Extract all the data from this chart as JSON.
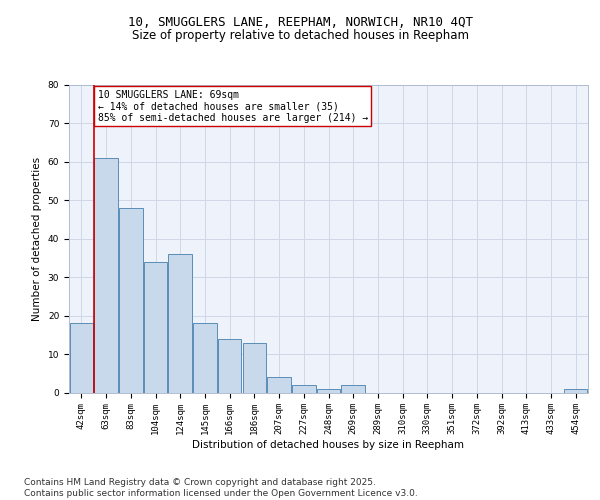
{
  "title": "10, SMUGGLERS LANE, REEPHAM, NORWICH, NR10 4QT",
  "subtitle": "Size of property relative to detached houses in Reepham",
  "xlabel": "Distribution of detached houses by size in Reepham",
  "ylabel": "Number of detached properties",
  "categories": [
    "42sqm",
    "63sqm",
    "83sqm",
    "104sqm",
    "124sqm",
    "145sqm",
    "166sqm",
    "186sqm",
    "207sqm",
    "227sqm",
    "248sqm",
    "269sqm",
    "289sqm",
    "310sqm",
    "330sqm",
    "351sqm",
    "372sqm",
    "392sqm",
    "413sqm",
    "433sqm",
    "454sqm"
  ],
  "values": [
    18,
    61,
    48,
    34,
    36,
    18,
    14,
    13,
    4,
    2,
    1,
    2,
    0,
    0,
    0,
    0,
    0,
    0,
    0,
    0,
    1
  ],
  "bar_color": "#c9d9ec",
  "bar_edge_color": "#5b8db8",
  "vline_x": 0.5,
  "vline_color": "#cc0000",
  "annotation_text": "10 SMUGGLERS LANE: 69sqm\n← 14% of detached houses are smaller (35)\n85% of semi-detached houses are larger (214) →",
  "annotation_box_color": "#ffffff",
  "annotation_box_edge": "#cc0000",
  "ylim": [
    0,
    80
  ],
  "yticks": [
    0,
    10,
    20,
    30,
    40,
    50,
    60,
    70,
    80
  ],
  "grid_color": "#d0d8e8",
  "background_color": "#eef2fa",
  "footer_text": "Contains HM Land Registry data © Crown copyright and database right 2025.\nContains public sector information licensed under the Open Government Licence v3.0.",
  "title_fontsize": 9,
  "subtitle_fontsize": 8.5,
  "label_fontsize": 7.5,
  "tick_fontsize": 6.5,
  "annotation_fontsize": 7,
  "footer_fontsize": 6.5
}
